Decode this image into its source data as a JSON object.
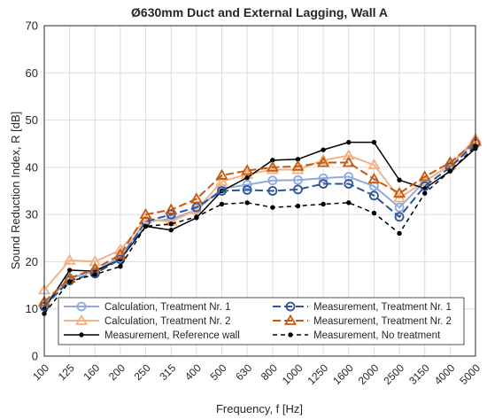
{
  "chart_data": {
    "type": "line",
    "title": "Ø630mm Duct and External Lagging, Wall A",
    "xlabel": "Frequency, f [Hz]",
    "ylabel": "Sound Reduction Index, R [dB]",
    "ylim": [
      0,
      70
    ],
    "yticks": [
      "0",
      "10",
      "20",
      "30",
      "40",
      "50",
      "60",
      "70"
    ],
    "categories": [
      "100",
      "125",
      "160",
      "200",
      "250",
      "315",
      "400",
      "500",
      "630",
      "800",
      "1000",
      "1250",
      "1600",
      "2000",
      "2500",
      "3150",
      "4000",
      "5000"
    ],
    "grid": true,
    "legend_position": "bottom-center",
    "series": [
      {
        "name": "Calculation, Treatment Nr. 1",
        "color": "#8faadc",
        "dash": "solid",
        "marker": "circle",
        "values": [
          11,
          16.5,
          18,
          21,
          28.5,
          29,
          31,
          35.5,
          36.3,
          37.2,
          37.3,
          37.7,
          38,
          36,
          31.5,
          37,
          40.5,
          45.5
        ]
      },
      {
        "name": "Calculation, Treatment Nr. 2",
        "color": "#f4b183",
        "dash": "solid",
        "marker": "triangle",
        "values": [
          14,
          20.3,
          20,
          22.5,
          29,
          28.5,
          31,
          37,
          38.5,
          39.5,
          39.5,
          41.5,
          42.5,
          40.5,
          33.5,
          37,
          40.5,
          46
        ]
      },
      {
        "name": "Measurement, Reference wall",
        "color": "#000000",
        "dash": "solid",
        "marker": "dot",
        "values": [
          10,
          18.2,
          18,
          20.5,
          27.5,
          26.7,
          29.3,
          35,
          37.8,
          41.5,
          41.7,
          43.7,
          45.3,
          45.3,
          37.3,
          35.5,
          39.2,
          44
        ]
      },
      {
        "name": "Measurement, Treatment Nr. 1",
        "color": "#2f5597",
        "dash": "long",
        "marker": "circle",
        "values": [
          10.5,
          16,
          17.5,
          20.5,
          28.5,
          30,
          31.5,
          35,
          35.2,
          35,
          35.3,
          36.5,
          36.5,
          34,
          29.5,
          36,
          40,
          45
        ]
      },
      {
        "name": "Measurement, Treatment Nr. 2",
        "color": "#c55a11",
        "dash": "long",
        "marker": "triangle",
        "values": [
          11.5,
          16.5,
          18.5,
          21.5,
          30,
          31,
          33.3,
          38.3,
          39.3,
          40,
          40.2,
          41,
          41,
          37.5,
          34.5,
          38,
          41,
          45.5
        ]
      },
      {
        "name": "Measurement, No treatment",
        "color": "#000000",
        "dash": "short",
        "marker": "dot",
        "values": [
          9,
          15.8,
          17.3,
          19,
          27.5,
          28,
          29.5,
          32.2,
          32.5,
          31.5,
          31.8,
          32.2,
          32.5,
          30.3,
          26,
          34.5,
          39.2,
          44.5
        ]
      }
    ]
  }
}
